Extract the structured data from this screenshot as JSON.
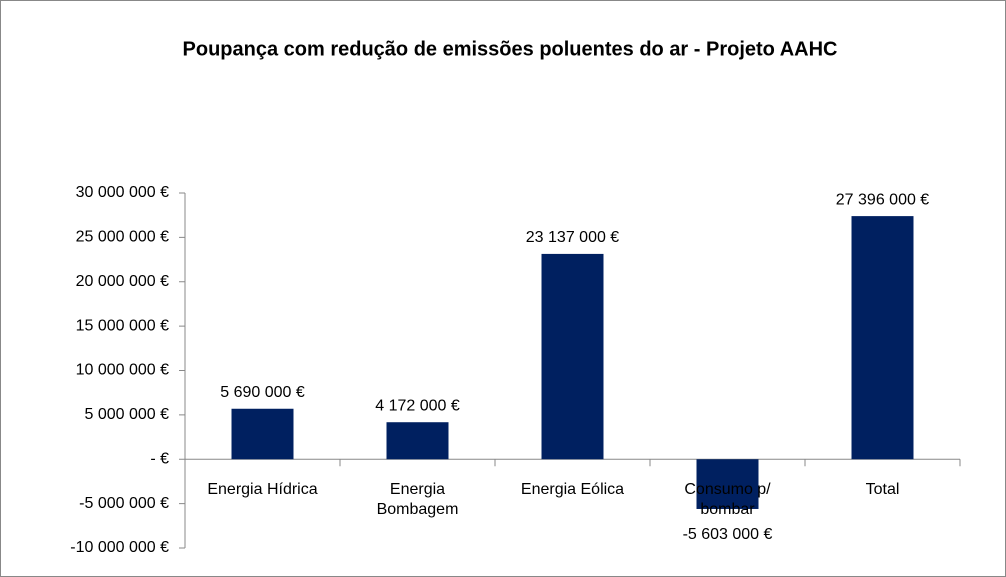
{
  "chart_data": {
    "type": "bar",
    "title": "Poupança com redução de emissões poluentes do ar - Projeto AAHC",
    "categories": [
      "Energia Hídrica",
      "Energia Bombagem",
      "Energia Eólica",
      "Consumo p/ bombar",
      "Total"
    ],
    "values": [
      5690000,
      4172000,
      23137000,
      -5603000,
      27396000
    ],
    "value_labels": [
      "5 690 000 €",
      "4 172 000 €",
      "23 137 000 €",
      "-5 603 000 €",
      "27 396 000 €"
    ],
    "color": "#002060",
    "ylim": [
      -10000000,
      30000000
    ],
    "yticks": [
      {
        "value": -10000000,
        "label": "-10 000 000 €"
      },
      {
        "value": -5000000,
        "label": "-5 000 000 €"
      },
      {
        "value": 0,
        "label": "-  €"
      },
      {
        "value": 5000000,
        "label": "5 000 000 €"
      },
      {
        "value": 10000000,
        "label": "10 000 000 €"
      },
      {
        "value": 15000000,
        "label": "15 000 000 €"
      },
      {
        "value": 20000000,
        "label": "20 000 000 €"
      },
      {
        "value": 25000000,
        "label": "25 000 000 €"
      },
      {
        "value": 30000000,
        "label": "30 000 000 €"
      }
    ],
    "grid": false
  }
}
